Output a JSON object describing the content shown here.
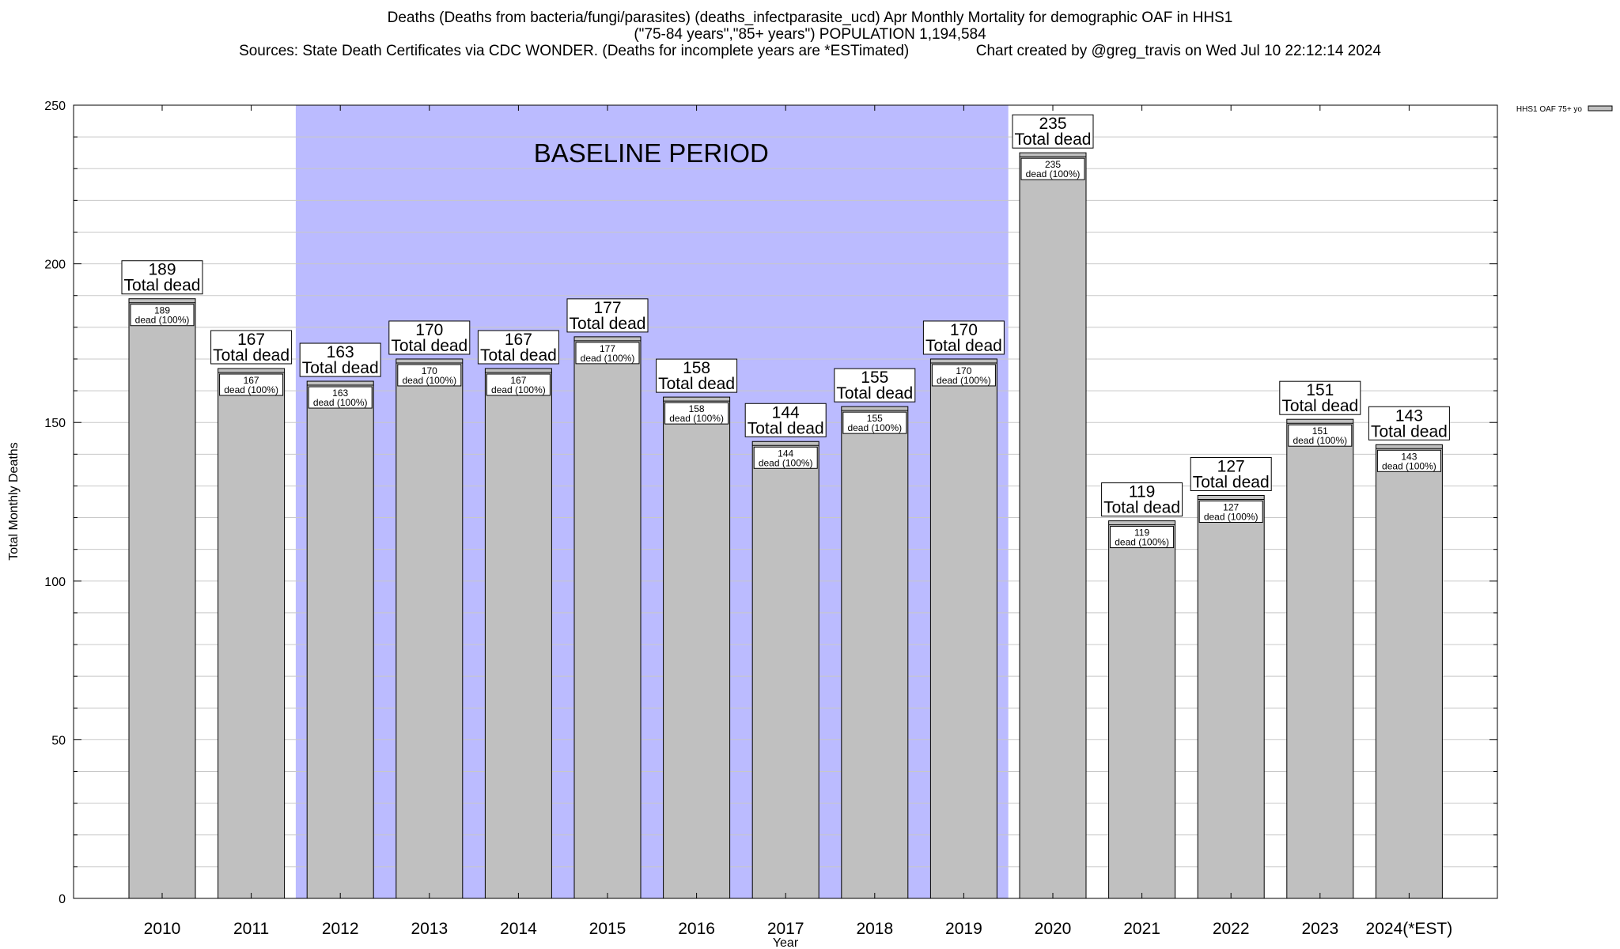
{
  "header": {
    "title_line1": "Deaths (Deaths from bacteria/fungi/parasites) (deaths_infectparasite_ucd) Apr Monthly Mortality for demographic OAF in HHS1",
    "title_line2": "(\"75-84 years\",\"85+ years\") POPULATION 1,194,584",
    "sources": "Sources: State Death Certificates via CDC WONDER. (Deaths for incomplete years are *ESTimated)",
    "credit": "Chart created by @greg_travis on Wed Jul 10 22:12:14 2024"
  },
  "chart_data": {
    "type": "bar",
    "title": "Deaths (Deaths from bacteria/fungi/parasites) (deaths_infectparasite_ucd) Apr Monthly Mortality for demographic OAF in HHS1",
    "xlabel": "Year",
    "ylabel": "Total Monthly Deaths",
    "ylim": [
      0,
      250
    ],
    "yticks": [
      0,
      50,
      100,
      150,
      200,
      250
    ],
    "grid": true,
    "legend_position": "top-right",
    "categories": [
      "2010",
      "2011",
      "2012",
      "2013",
      "2014",
      "2015",
      "2016",
      "2017",
      "2018",
      "2019",
      "2020",
      "2021",
      "2022",
      "2023",
      "2024(*EST)"
    ],
    "series": [
      {
        "name": "HHS1 OAF 75+ yo",
        "color": "#c0c0c0",
        "values": [
          189,
          167,
          163,
          170,
          167,
          177,
          158,
          144,
          155,
          170,
          235,
          119,
          127,
          151,
          143
        ]
      }
    ],
    "total_label_suffix": "Total dead",
    "inner_label_suffix": "dead (100%)",
    "baseline": {
      "label": "BASELINE PERIOD",
      "start": "2012",
      "end": "2019",
      "color": "#bbbbff"
    }
  }
}
